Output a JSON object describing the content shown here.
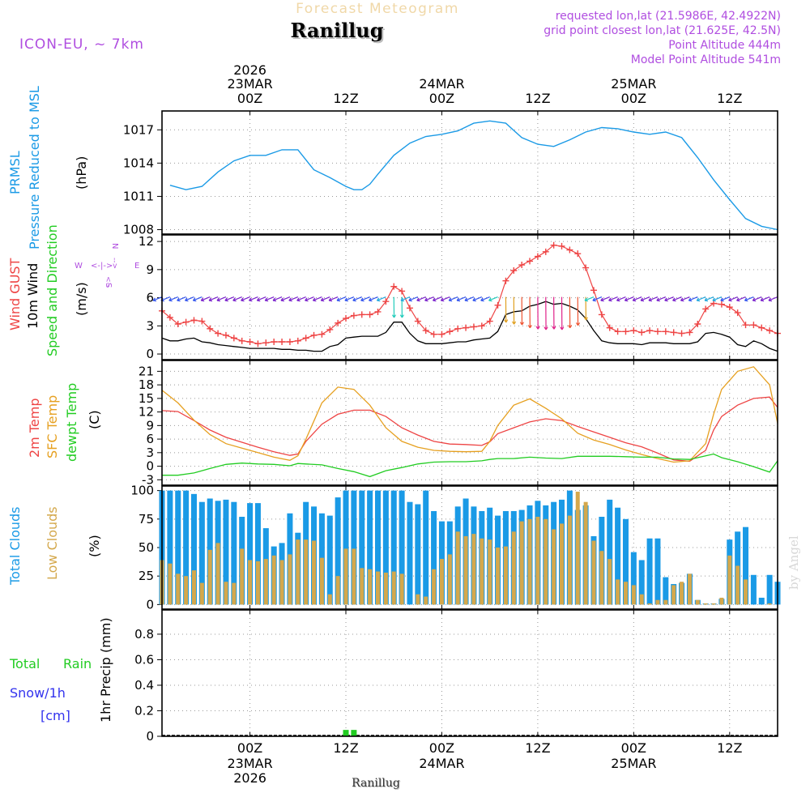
{
  "header": {
    "subtitle": "Forecast Meteogram",
    "title": "Ranillug",
    "model": "ICON-EU, ~ 7km",
    "requested": "requested lon,lat (21.5986E, 42.4922N)",
    "grid_point": "grid point closest lon,lat (21.625E, 42.5N)",
    "point_alt": "Point Altitude 444m",
    "model_alt": "Model Point Altitude 541m"
  },
  "time_axis": {
    "top": [
      {
        "line1": "2026",
        "line2": "23MAR",
        "line3": "00Z",
        "hour": 0
      },
      {
        "line1": "",
        "line2": "",
        "line3": "12Z",
        "hour": 12
      },
      {
        "line1": "",
        "line2": "24MAR",
        "line3": "00Z",
        "hour": 24
      },
      {
        "line1": "",
        "line2": "",
        "line3": "12Z",
        "hour": 36
      },
      {
        "line1": "",
        "line2": "25MAR",
        "line3": "00Z",
        "hour": 48
      },
      {
        "line1": "",
        "line2": "",
        "line3": "12Z",
        "hour": 60
      }
    ],
    "bottom": [
      {
        "line1": "00Z",
        "line2": "23MAR",
        "line3": "2026",
        "hour": 0
      },
      {
        "line1": "12Z",
        "line2": "",
        "line3": "",
        "hour": 12
      },
      {
        "line1": "00Z",
        "line2": "24MAR",
        "line3": "",
        "hour": 24
      },
      {
        "line1": "12Z",
        "line2": "",
        "line3": "",
        "hour": 36
      },
      {
        "line1": "00Z",
        "line2": "25MAR",
        "line3": "",
        "hour": 48
      },
      {
        "line1": "12Z",
        "line2": "",
        "line3": "",
        "hour": 60
      }
    ],
    "start_hour": -11,
    "end_hour": 66,
    "footer": "Ranillug"
  },
  "panels": {
    "pressure": {
      "label1": "PRMSL",
      "label2": "Pressure Reduced to MSL",
      "unit": "(hPa)",
      "ticks": [
        1008,
        1011,
        1014,
        1017
      ],
      "ylim": [
        1007.6,
        1018.7
      ],
      "color": "#1a9ae6"
    },
    "wind": {
      "label_gust": "Wind GUST",
      "label_wind": "10m Wind",
      "label_dir": "Speed and Direction",
      "unit": "(m/s)",
      "compass_n": "N",
      "compass_s": "S",
      "compass_w": "W",
      "compass_e": "E",
      "ticks": [
        0,
        3,
        6,
        9,
        12
      ],
      "ylim": [
        -0.6,
        12.7
      ],
      "gust_color": "#ee4444",
      "wind_color": "#000000"
    },
    "temp": {
      "label1": "2m Temp",
      "label2": "SFC Temp",
      "label3": "dewpt Temp",
      "unit": "(C)",
      "ticks": [
        -3,
        0,
        3,
        6,
        9,
        12,
        15,
        18,
        21
      ],
      "ylim": [
        -4.2,
        23.4
      ],
      "t2m_color": "#ee4444",
      "sfc_color": "#e6a020",
      "dew_color": "#22cc22"
    },
    "clouds": {
      "label1": "Total Clouds",
      "label2": "Low Clouds",
      "unit": "(%)",
      "ticks": [
        0,
        25,
        50,
        75,
        100
      ],
      "ylim": [
        -4,
        104
      ],
      "total_color": "#1a9ae6",
      "low_color": "#d4a84c"
    },
    "precip": {
      "label1": "Total",
      "label2": "Rain",
      "label3": "Snow/1h",
      "label4": "[cm]",
      "unit": "1hr Precip (mm)",
      "ticks": [
        "0",
        "0.2",
        "0.4",
        "0.6",
        "0.8"
      ],
      "ylim": [
        0,
        0.99
      ],
      "rain_color": "#22cc22",
      "snow_color": "#3333ee"
    }
  },
  "watermark": "by Angel",
  "chart_data": [
    {
      "type": "line",
      "title": "PRMSL Pressure Reduced to MSL",
      "ylabel": "hPa",
      "x": [
        -10,
        -8,
        -6,
        -4,
        -2,
        0,
        2,
        4,
        6,
        8,
        10,
        12,
        13,
        14,
        15,
        16,
        18,
        20,
        22,
        24,
        26,
        28,
        30,
        32,
        34,
        36,
        38,
        40,
        42,
        44,
        46,
        48,
        50,
        52,
        54,
        56,
        58,
        60,
        62,
        64,
        66
      ],
      "series": [
        {
          "name": "PRMSL",
          "values": [
            1012.0,
            1011.6,
            1011.9,
            1013.2,
            1014.2,
            1014.7,
            1014.7,
            1015.2,
            1015.2,
            1013.4,
            1012.7,
            1011.9,
            1011.6,
            1011.6,
            1012.1,
            1013.0,
            1014.7,
            1015.8,
            1016.4,
            1016.6,
            1016.9,
            1017.6,
            1017.8,
            1017.6,
            1016.3,
            1015.7,
            1015.5,
            1016.1,
            1016.8,
            1017.2,
            1017.1,
            1016.8,
            1016.6,
            1016.8,
            1016.3,
            1014.5,
            1012.5,
            1010.7,
            1009.0,
            1008.3,
            1008.0
          ]
        }
      ]
    },
    {
      "type": "line",
      "title": "Wind GUST / 10m Wind Speed and Direction",
      "ylabel": "m/s",
      "x": [
        -11,
        -10,
        -9,
        -8,
        -7,
        -6,
        -5,
        -4,
        -3,
        -2,
        -1,
        0,
        1,
        2,
        3,
        4,
        5,
        6,
        7,
        8,
        9,
        10,
        11,
        12,
        13,
        14,
        15,
        16,
        17,
        18,
        19,
        20,
        21,
        22,
        23,
        24,
        25,
        26,
        27,
        28,
        29,
        30,
        31,
        32,
        33,
        34,
        35,
        36,
        37,
        38,
        39,
        40,
        41,
        42,
        43,
        44,
        45,
        46,
        47,
        48,
        49,
        50,
        51,
        52,
        53,
        54,
        55,
        56,
        57,
        58,
        59,
        60,
        61,
        62,
        63,
        64,
        65,
        66
      ],
      "series": [
        {
          "name": "Wind GUST",
          "values": [
            4.6,
            3.9,
            3.2,
            3.4,
            3.6,
            3.5,
            2.7,
            2.2,
            2.0,
            1.7,
            1.4,
            1.3,
            1.1,
            1.2,
            1.3,
            1.3,
            1.3,
            1.4,
            1.7,
            2.0,
            2.1,
            2.6,
            3.3,
            3.8,
            4.1,
            4.2,
            4.2,
            4.5,
            5.6,
            7.2,
            6.7,
            4.9,
            3.5,
            2.5,
            2.1,
            2.1,
            2.4,
            2.7,
            2.8,
            2.9,
            3.0,
            3.5,
            5.2,
            7.8,
            8.9,
            9.5,
            9.9,
            10.4,
            10.9,
            11.6,
            11.5,
            11.1,
            10.7,
            9.2,
            6.8,
            4.2,
            2.8,
            2.4,
            2.4,
            2.5,
            2.3,
            2.5,
            2.4,
            2.4,
            2.3,
            2.2,
            2.3,
            3.2,
            4.8,
            5.4,
            5.3,
            5.0,
            4.4,
            3.1,
            3.1,
            2.8,
            2.5,
            2.2
          ]
        },
        {
          "name": "10m Wind",
          "values": [
            1.7,
            1.4,
            1.4,
            1.6,
            1.7,
            1.3,
            1.2,
            1.0,
            0.9,
            0.8,
            0.7,
            0.6,
            0.6,
            0.6,
            0.6,
            0.5,
            0.5,
            0.4,
            0.4,
            0.3,
            0.3,
            0.8,
            1.0,
            1.7,
            1.8,
            1.9,
            1.9,
            1.9,
            2.3,
            3.4,
            3.4,
            2.2,
            1.4,
            1.1,
            1.1,
            1.1,
            1.2,
            1.3,
            1.3,
            1.5,
            1.6,
            1.7,
            2.4,
            4.2,
            4.5,
            4.6,
            5.1,
            5.3,
            5.6,
            5.3,
            5.4,
            5.1,
            4.7,
            3.8,
            2.5,
            1.4,
            1.2,
            1.1,
            1.1,
            1.1,
            1.0,
            1.2,
            1.2,
            1.2,
            1.1,
            1.1,
            1.1,
            1.3,
            2.2,
            2.3,
            2.1,
            1.8,
            1.0,
            0.8,
            1.4,
            1.1,
            0.6,
            0.3
          ]
        }
      ]
    },
    {
      "type": "line",
      "title": "2m Temp / SFC Temp / dewpt Temp",
      "ylabel": "C",
      "x": [
        -11,
        -9,
        -7,
        -5,
        -3,
        -1,
        1,
        3,
        5,
        6,
        7,
        9,
        11,
        13,
        15,
        17,
        19,
        21,
        23,
        25,
        27,
        29,
        30,
        31,
        33,
        35,
        37,
        39,
        41,
        43,
        45,
        47,
        49,
        51,
        53,
        55,
        57,
        58,
        59,
        61,
        63,
        65,
        66
      ],
      "series": [
        {
          "name": "2m Temp",
          "values": [
            12.3,
            12.1,
            10.1,
            8.0,
            6.4,
            5.3,
            4.2,
            3.2,
            2.4,
            2.7,
            5.5,
            9.3,
            11.5,
            12.4,
            12.4,
            11.0,
            8.5,
            6.9,
            5.5,
            4.9,
            4.8,
            4.6,
            5.4,
            7.2,
            8.5,
            9.8,
            10.5,
            10.1,
            8.8,
            7.6,
            6.4,
            5.2,
            4.3,
            2.9,
            1.4,
            1.1,
            3.5,
            8.0,
            11.0,
            13.5,
            15.0,
            15.3,
            13.0
          ]
        },
        {
          "name": "SFC Temp",
          "values": [
            16.8,
            14.0,
            10.2,
            7.0,
            5.0,
            4.0,
            3.0,
            2.0,
            1.3,
            2.3,
            6.0,
            14.0,
            17.5,
            17.0,
            13.5,
            8.5,
            5.5,
            4.2,
            3.5,
            3.3,
            3.2,
            3.3,
            5.5,
            9.0,
            13.5,
            14.9,
            12.8,
            10.5,
            7.3,
            5.8,
            4.8,
            3.6,
            2.6,
            1.7,
            0.9,
            1.2,
            5.0,
            11.5,
            17.0,
            21.0,
            22.0,
            18.0,
            9.5
          ]
        },
        {
          "name": "dewpt Temp",
          "values": [
            -2.0,
            -2.0,
            -1.5,
            -0.5,
            0.4,
            0.7,
            0.5,
            0.4,
            0.1,
            0.6,
            0.5,
            0.3,
            -0.5,
            -1.2,
            -2.3,
            -1.0,
            -0.3,
            0.5,
            0.9,
            1.0,
            1.0,
            1.2,
            1.5,
            1.7,
            1.7,
            2.0,
            1.8,
            1.7,
            2.2,
            2.2,
            2.2,
            2.1,
            2.0,
            2.0,
            1.6,
            1.5,
            2.3,
            2.7,
            1.9,
            1.0,
            -0.1,
            -1.3,
            1.2
          ]
        }
      ]
    },
    {
      "type": "bar",
      "title": "Total Clouds / Low Clouds",
      "ylabel": "%",
      "x": [
        -11,
        -10,
        -9,
        -8,
        -7,
        -6,
        -5,
        -4,
        -3,
        -2,
        -1,
        0,
        1,
        2,
        3,
        4,
        5,
        6,
        7,
        8,
        9,
        10,
        11,
        12,
        13,
        14,
        15,
        16,
        17,
        18,
        19,
        20,
        21,
        22,
        23,
        24,
        25,
        26,
        27,
        28,
        29,
        30,
        31,
        32,
        33,
        34,
        35,
        36,
        37,
        38,
        39,
        40,
        41,
        42,
        43,
        44,
        45,
        46,
        47,
        48,
        49,
        50,
        51,
        52,
        53,
        54,
        55,
        56,
        57,
        58,
        59,
        60,
        61,
        62,
        63,
        64,
        65,
        66
      ],
      "series": [
        {
          "name": "Total Clouds",
          "values": [
            100,
            100,
            100,
            100,
            97,
            90,
            93,
            91,
            92,
            90,
            77,
            89,
            89,
            67,
            51,
            54,
            80,
            63,
            90,
            86,
            80,
            78,
            94,
            100,
            100,
            100,
            100,
            100,
            100,
            100,
            100,
            90,
            88,
            100,
            82,
            73,
            73,
            86,
            93,
            86,
            82,
            85,
            78,
            82,
            82,
            83,
            87,
            91,
            87,
            90,
            92,
            100,
            83,
            87,
            60,
            77,
            92,
            85,
            75,
            46,
            39,
            58,
            58,
            24,
            18,
            19,
            27,
            4,
            1,
            1,
            5,
            57,
            64,
            68,
            26,
            6,
            26,
            20
          ]
        },
        {
          "name": "Low Clouds",
          "values": [
            39,
            36,
            27,
            25,
            30,
            19,
            48,
            54,
            20,
            19,
            49,
            39,
            38,
            40,
            43,
            39,
            44,
            57,
            57,
            56,
            41,
            9,
            25,
            49,
            49,
            32,
            31,
            29,
            28,
            29,
            27,
            0,
            9,
            7,
            31,
            40,
            44,
            64,
            60,
            62,
            58,
            57,
            50,
            51,
            64,
            73,
            75,
            77,
            75,
            66,
            71,
            78,
            99,
            90,
            56,
            47,
            40,
            22,
            20,
            17,
            9,
            1,
            4,
            4,
            17,
            20,
            27,
            4,
            1,
            1,
            6,
            43,
            34,
            22,
            0,
            0,
            1,
            0
          ]
        }
      ]
    },
    {
      "type": "bar",
      "title": "Total Rain / Snow/1h",
      "ylabel": "1hr Precip (mm)",
      "x": [
        12,
        13
      ],
      "series": [
        {
          "name": "Total Rain",
          "values": [
            0.05,
            0.05
          ]
        }
      ]
    }
  ]
}
